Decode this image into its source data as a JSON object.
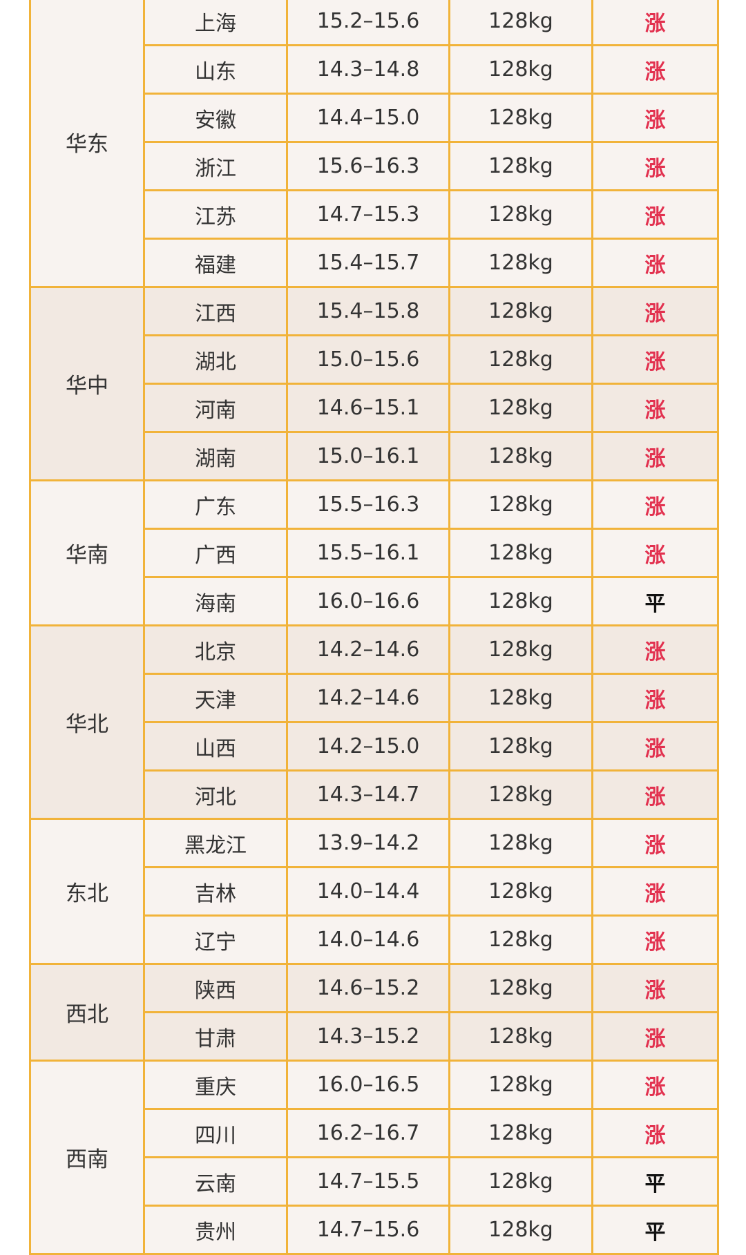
{
  "colors": {
    "border": "#f1b33a",
    "up": "#e2314f",
    "flat": "#111111",
    "row_light": "#f8f3f0",
    "row_dark": "#f2e9e2"
  },
  "groups": [
    {
      "region": "华东",
      "rows": [
        {
          "province": "上海",
          "price": "15.2–15.6",
          "weight": "128kg",
          "trend": "涨"
        },
        {
          "province": "山东",
          "price": "14.3–14.8",
          "weight": "128kg",
          "trend": "涨"
        },
        {
          "province": "安徽",
          "price": "14.4–15.0",
          "weight": "128kg",
          "trend": "涨"
        },
        {
          "province": "浙江",
          "price": "15.6–16.3",
          "weight": "128kg",
          "trend": "涨"
        },
        {
          "province": "江苏",
          "price": "14.7–15.3",
          "weight": "128kg",
          "trend": "涨"
        },
        {
          "province": "福建",
          "price": "15.4–15.7",
          "weight": "128kg",
          "trend": "涨"
        }
      ]
    },
    {
      "region": "华中",
      "rows": [
        {
          "province": "江西",
          "price": "15.4–15.8",
          "weight": "128kg",
          "trend": "涨"
        },
        {
          "province": "湖北",
          "price": "15.0–15.6",
          "weight": "128kg",
          "trend": "涨"
        },
        {
          "province": "河南",
          "price": "14.6–15.1",
          "weight": "128kg",
          "trend": "涨"
        },
        {
          "province": "湖南",
          "price": "15.0–16.1",
          "weight": "128kg",
          "trend": "涨"
        }
      ]
    },
    {
      "region": "华南",
      "rows": [
        {
          "province": "广东",
          "price": "15.5–16.3",
          "weight": "128kg",
          "trend": "涨"
        },
        {
          "province": "广西",
          "price": "15.5–16.1",
          "weight": "128kg",
          "trend": "涨"
        },
        {
          "province": "海南",
          "price": "16.0–16.6",
          "weight": "128kg",
          "trend": "平"
        }
      ]
    },
    {
      "region": "华北",
      "rows": [
        {
          "province": "北京",
          "price": "14.2–14.6",
          "weight": "128kg",
          "trend": "涨"
        },
        {
          "province": "天津",
          "price": "14.2–14.6",
          "weight": "128kg",
          "trend": "涨"
        },
        {
          "province": "山西",
          "price": "14.2–15.0",
          "weight": "128kg",
          "trend": "涨"
        },
        {
          "province": "河北",
          "price": "14.3–14.7",
          "weight": "128kg",
          "trend": "涨"
        }
      ]
    },
    {
      "region": "东北",
      "rows": [
        {
          "province": "黑龙江",
          "price": "13.9–14.2",
          "weight": "128kg",
          "trend": "涨"
        },
        {
          "province": "吉林",
          "price": "14.0–14.4",
          "weight": "128kg",
          "trend": "涨"
        },
        {
          "province": "辽宁",
          "price": "14.0–14.6",
          "weight": "128kg",
          "trend": "涨"
        }
      ]
    },
    {
      "region": "西北",
      "rows": [
        {
          "province": "陕西",
          "price": "14.6–15.2",
          "weight": "128kg",
          "trend": "涨"
        },
        {
          "province": "甘肃",
          "price": "14.3–15.2",
          "weight": "128kg",
          "trend": "涨"
        }
      ]
    },
    {
      "region": "西南",
      "rows": [
        {
          "province": "重庆",
          "price": "16.0–16.5",
          "weight": "128kg",
          "trend": "涨"
        },
        {
          "province": "四川",
          "price": "16.2–16.7",
          "weight": "128kg",
          "trend": "涨"
        },
        {
          "province": "云南",
          "price": "14.7–15.5",
          "weight": "128kg",
          "trend": "平"
        },
        {
          "province": "贵州",
          "price": "14.7–15.6",
          "weight": "128kg",
          "trend": "平"
        }
      ]
    }
  ]
}
